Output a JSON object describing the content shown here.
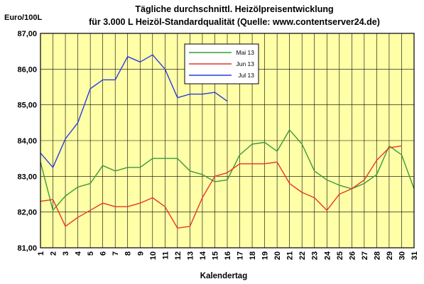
{
  "chart_data": {
    "type": "line",
    "title": "Tägliche durchschnittl. Heizölpreisentwicklung",
    "subtitle": "für 3.000 L Heizöl-Standardqualität (Quelle: www.contentserver24.de)",
    "ylabel": "Euro/100L",
    "xlabel": "Kalendertag",
    "ylim": [
      81,
      87
    ],
    "yticks": [
      "81,00",
      "82,00",
      "83,00",
      "84,00",
      "85,00",
      "86,00",
      "87,00"
    ],
    "x": [
      1,
      2,
      3,
      4,
      5,
      6,
      7,
      8,
      9,
      10,
      11,
      12,
      13,
      14,
      15,
      16,
      17,
      18,
      19,
      20,
      21,
      22,
      23,
      24,
      25,
      26,
      27,
      28,
      29,
      30,
      31
    ],
    "grid": true,
    "legend_position": "top-center",
    "colors": {
      "plot_bg": "#FFFFA8",
      "grid": "#000000"
    },
    "series": [
      {
        "name": "Mai 13",
        "color": "#3A9A3A",
        "values": [
          83.4,
          82.05,
          82.45,
          82.7,
          82.8,
          83.3,
          83.15,
          83.25,
          83.25,
          83.5,
          83.5,
          83.5,
          83.15,
          83.05,
          82.85,
          82.9,
          83.6,
          83.9,
          83.95,
          83.7,
          84.3,
          83.9,
          83.15,
          82.9,
          82.75,
          82.65,
          82.8,
          83.05,
          83.85,
          83.6,
          82.65
        ]
      },
      {
        "name": "Jun 13",
        "color": "#E8342A",
        "values": [
          82.3,
          82.35,
          81.6,
          81.85,
          82.05,
          82.25,
          82.15,
          82.15,
          82.25,
          82.4,
          82.15,
          81.55,
          81.6,
          82.4,
          83.0,
          83.1,
          83.35,
          83.35,
          83.35,
          83.4,
          82.8,
          82.55,
          82.4,
          82.05,
          82.5,
          82.65,
          82.9,
          83.45,
          83.8,
          83.85,
          null
        ]
      },
      {
        "name": "Jul 13",
        "color": "#2A3AE0",
        "values": [
          83.65,
          83.25,
          84.05,
          84.5,
          85.45,
          85.7,
          85.7,
          86.35,
          86.2,
          86.4,
          86.0,
          85.2,
          85.3,
          85.3,
          85.35,
          85.1,
          null,
          null,
          null,
          null,
          null,
          null,
          null,
          null,
          null,
          null,
          null,
          null,
          null,
          null,
          null
        ]
      }
    ]
  }
}
